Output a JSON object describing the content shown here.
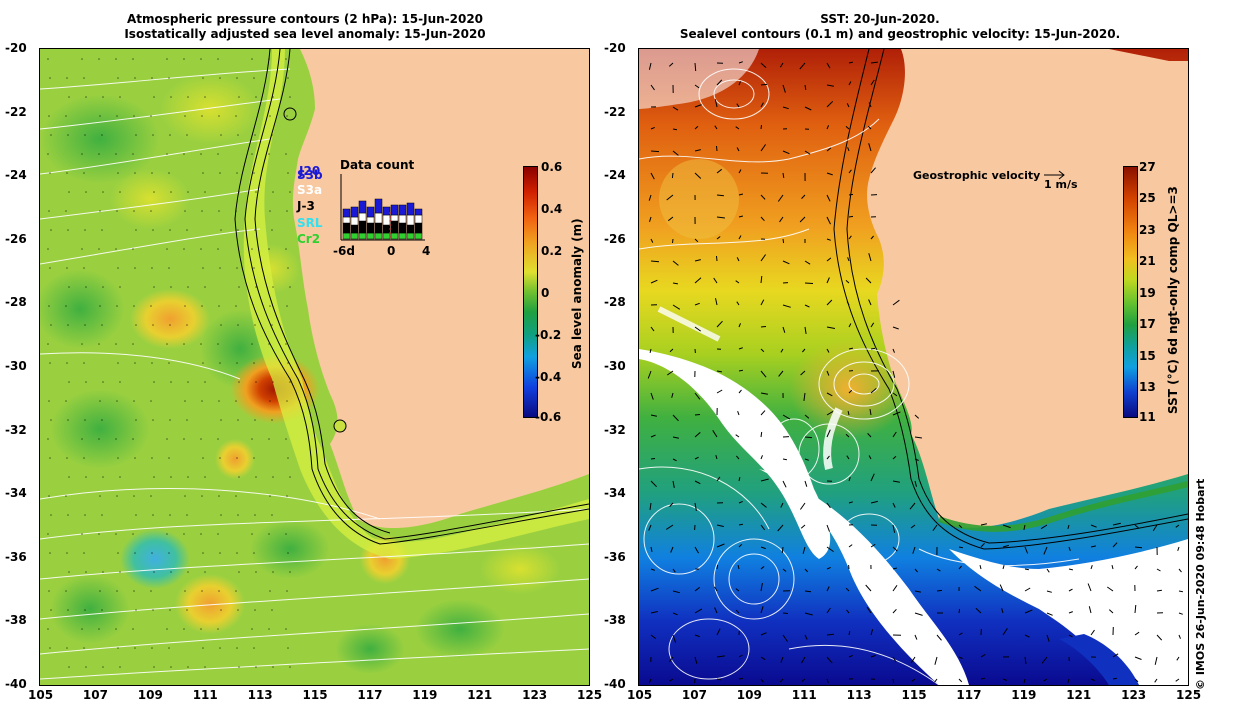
{
  "left_panel": {
    "title_line1": "Atmospheric pressure contours (2 hPa): 15-Jun-2020",
    "title_line2": "Isostatically adjusted sea level anomaly: 15-Jun-2020",
    "colorbar": {
      "title": "Sea level anomaly (m)",
      "ticks": [
        "0.6",
        "0.4",
        "0.2",
        "0",
        "-0.2",
        "-0.4",
        "-0.6"
      ],
      "range": [
        -0.6,
        0.6
      ]
    },
    "data_count": {
      "title": "Data count",
      "satellites": [
        {
          "label": "J20",
          "color": "#1a1ad6"
        },
        {
          "label": "S3b",
          "color": "#1a1ad6"
        },
        {
          "label": "S3a",
          "color": "#ffffff"
        },
        {
          "label": "J-3",
          "color": "#000000"
        },
        {
          "label": "SRL",
          "color": "#33e0f0"
        },
        {
          "label": "Cr2",
          "color": "#30d030"
        }
      ],
      "x_ticks": [
        "-6d",
        "0",
        "4"
      ]
    }
  },
  "right_panel": {
    "title_line1": "SST: 20-Jun-2020.",
    "title_line2": "Sealevel contours (0.1 m) and geostrophic velocity: 15-Jun-2020.",
    "colorbar": {
      "title": "SST (°C) 6d ngt-only comp QL>=3",
      "ticks": [
        "27",
        "25",
        "23",
        "21",
        "19",
        "17",
        "15",
        "13",
        "11"
      ],
      "range": [
        11,
        27
      ]
    },
    "velocity_legend": {
      "label": "Geostrophic velocity",
      "scale": "1 m/s"
    }
  },
  "axes": {
    "x_ticks": [
      "105",
      "107",
      "109",
      "111",
      "113",
      "115",
      "117",
      "119",
      "121",
      "123",
      "125"
    ],
    "y_ticks": [
      "-20",
      "-22",
      "-24",
      "-26",
      "-28",
      "-30",
      "-32",
      "-34",
      "-36",
      "-38",
      "-40"
    ],
    "x_range": [
      105,
      125
    ],
    "y_range": [
      -40,
      -20
    ]
  },
  "credit": "© IMOS 26-Jun-2020 09:48 Hobart",
  "colors": {
    "land": "#f8c9a0",
    "missing_data": "#ffffff"
  }
}
